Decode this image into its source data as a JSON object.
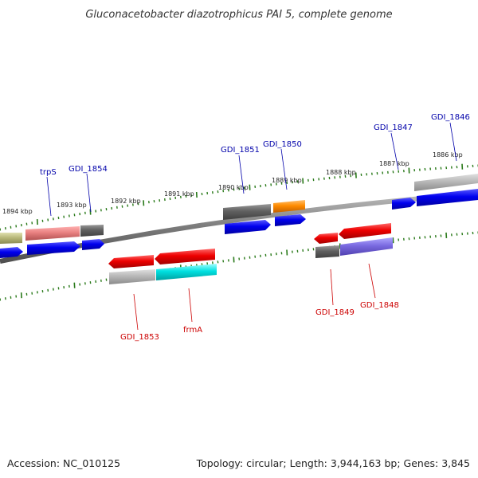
{
  "title": "Gluconacetobacter diazotrophicus PAI 5, complete genome",
  "footer": {
    "accession": "Accession: NC_010125",
    "summary": "Topology: circular; Length: 3,944,163 bp; Genes: 3,845"
  },
  "ticks": {
    "labels": [
      "1894 kbp",
      "1893 kbp",
      "1892 kbp",
      "1891 kbp",
      "1890 kbp",
      "1889 kbp",
      "1888 kbp",
      "1887 kbp",
      "1886 kbp"
    ]
  },
  "genes_top": [
    {
      "label": "trpS",
      "color": "#0000aa"
    },
    {
      "label": "GDI_1854",
      "color": "#0000aa"
    },
    {
      "label": "GDI_1851",
      "color": "#0000aa"
    },
    {
      "label": "GDI_1850",
      "color": "#0000aa"
    },
    {
      "label": "GDI_1847",
      "color": "#0000aa"
    },
    {
      "label": "GDI_1846",
      "color": "#0000aa"
    }
  ],
  "genes_bottom": [
    {
      "label": "GDI_1853",
      "color": "#cc0000"
    },
    {
      "label": "frmA",
      "color": "#cc0000"
    },
    {
      "label": "GDI_1849",
      "color": "#cc0000"
    },
    {
      "label": "GDI_1848",
      "color": "#cc0000"
    }
  ],
  "colors": {
    "backbone": "#7a7a7a",
    "tick": "#2a7a1a",
    "forward": "#0000ee",
    "reverse": "#ee0000",
    "pseudo_gray": "#6b6b6b",
    "light_gray": "#b8b8b8",
    "cyan": "#00e0e0",
    "orange": "#ff8c00",
    "purple": "#7a6ae0",
    "pink": "#e88080",
    "olive": "#b8b87a"
  }
}
